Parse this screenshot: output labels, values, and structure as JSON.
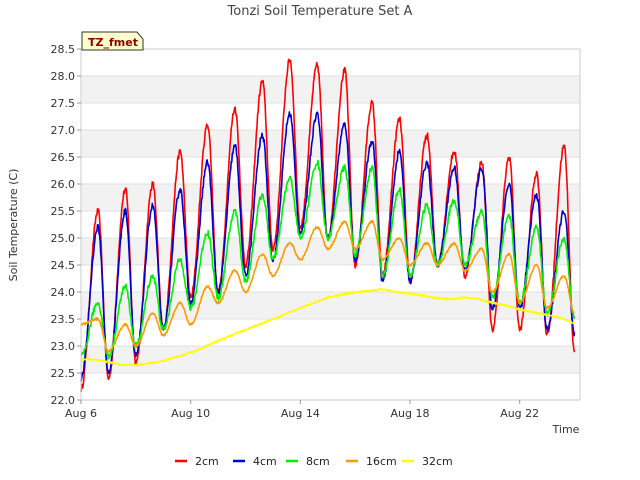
{
  "chart_data": {
    "type": "line",
    "title": "Tonzi Soil Temperature Set A",
    "xlabel": "Time",
    "ylabel": "Soil Temperature (C)",
    "tag": "TZ_fmet",
    "x_start": "Aug 6",
    "x_range_days": [
      0,
      18.2
    ],
    "x_ticks": [
      {
        "day": 0,
        "label": "Aug 6"
      },
      {
        "day": 4,
        "label": "Aug 10"
      },
      {
        "day": 8,
        "label": "Aug 14"
      },
      {
        "day": 12,
        "label": "Aug 18"
      },
      {
        "day": 16,
        "label": "Aug 22"
      }
    ],
    "ylim": [
      22.0,
      28.5
    ],
    "y_ticks": [
      "22.0",
      "22.5",
      "23.0",
      "23.5",
      "24.0",
      "24.5",
      "25.0",
      "25.5",
      "26.0",
      "26.5",
      "27.0",
      "27.5",
      "28.0",
      "28.5"
    ],
    "grid": true,
    "legend_position": "bottom",
    "series": [
      {
        "name": "2cm",
        "color": "#ff0000",
        "min": [
          22.2,
          22.4,
          22.7,
          23.3,
          23.9,
          24.0,
          24.5,
          24.8,
          25.2,
          25.0,
          24.5,
          24.3,
          24.2,
          24.5,
          24.3,
          23.3,
          23.3,
          23.2,
          22.9
        ],
        "max": [
          25.5,
          25.9,
          26.0,
          26.6,
          27.1,
          27.4,
          27.9,
          28.3,
          28.2,
          28.1,
          27.5,
          27.2,
          26.9,
          26.6,
          26.4,
          26.5,
          26.2,
          26.7,
          26.3
        ]
      },
      {
        "name": "4cm",
        "color": "#0000cc",
        "min": [
          22.4,
          22.5,
          22.8,
          23.3,
          23.8,
          24.0,
          24.3,
          24.6,
          25.1,
          25.0,
          24.6,
          24.2,
          24.2,
          24.5,
          24.4,
          23.7,
          23.7,
          23.3,
          23.2
        ],
        "max": [
          25.2,
          25.5,
          25.6,
          25.9,
          26.4,
          26.7,
          26.9,
          27.3,
          27.3,
          27.1,
          26.8,
          26.6,
          26.4,
          26.3,
          26.3,
          26.0,
          25.8,
          25.5,
          25.3
        ]
      },
      {
        "name": "8cm",
        "color": "#00ee00",
        "min": [
          22.8,
          22.8,
          23.0,
          23.3,
          23.7,
          23.9,
          24.2,
          24.6,
          25.0,
          25.0,
          24.7,
          24.3,
          24.3,
          24.5,
          24.5,
          23.9,
          23.8,
          23.6,
          23.5
        ],
        "max": [
          23.8,
          24.1,
          24.3,
          24.6,
          25.1,
          25.5,
          25.8,
          26.1,
          26.4,
          26.3,
          26.3,
          25.9,
          25.6,
          25.7,
          25.5,
          25.4,
          25.2,
          25.0,
          24.7
        ]
      },
      {
        "name": "16cm",
        "color": "#ff9900",
        "min": [
          23.4,
          22.9,
          23.0,
          23.2,
          23.4,
          23.8,
          24.0,
          24.3,
          24.6,
          24.8,
          24.8,
          24.6,
          24.5,
          24.5,
          24.4,
          24.0,
          23.8,
          23.7,
          23.6
        ],
        "max": [
          23.5,
          23.4,
          23.6,
          23.8,
          24.1,
          24.4,
          24.7,
          24.9,
          25.2,
          25.3,
          25.3,
          25.0,
          24.9,
          24.9,
          24.8,
          24.7,
          24.5,
          24.3,
          24.1
        ]
      },
      {
        "name": "32cm",
        "color": "#ffff00",
        "points": [
          [
            0,
            22.75
          ],
          [
            0.5,
            22.75
          ],
          [
            1,
            22.7
          ],
          [
            1.5,
            22.65
          ],
          [
            2,
            22.65
          ],
          [
            2.5,
            22.68
          ],
          [
            3,
            22.72
          ],
          [
            3.5,
            22.8
          ],
          [
            4,
            22.88
          ],
          [
            4.5,
            22.98
          ],
          [
            5,
            23.1
          ],
          [
            5.5,
            23.2
          ],
          [
            6,
            23.3
          ],
          [
            6.5,
            23.4
          ],
          [
            7,
            23.5
          ],
          [
            7.5,
            23.6
          ],
          [
            8,
            23.7
          ],
          [
            8.5,
            23.8
          ],
          [
            9,
            23.9
          ],
          [
            9.5,
            23.95
          ],
          [
            10,
            24.0
          ],
          [
            10.5,
            24.02
          ],
          [
            11,
            24.05
          ],
          [
            11.5,
            24.0
          ],
          [
            12,
            23.97
          ],
          [
            12.5,
            23.93
          ],
          [
            13,
            23.88
          ],
          [
            13.5,
            23.87
          ],
          [
            14,
            23.9
          ],
          [
            14.5,
            23.87
          ],
          [
            15,
            23.8
          ],
          [
            15.5,
            23.75
          ],
          [
            16,
            23.68
          ],
          [
            16.5,
            23.62
          ],
          [
            17,
            23.58
          ],
          [
            17.5,
            23.52
          ],
          [
            18,
            23.42
          ]
        ]
      }
    ]
  }
}
